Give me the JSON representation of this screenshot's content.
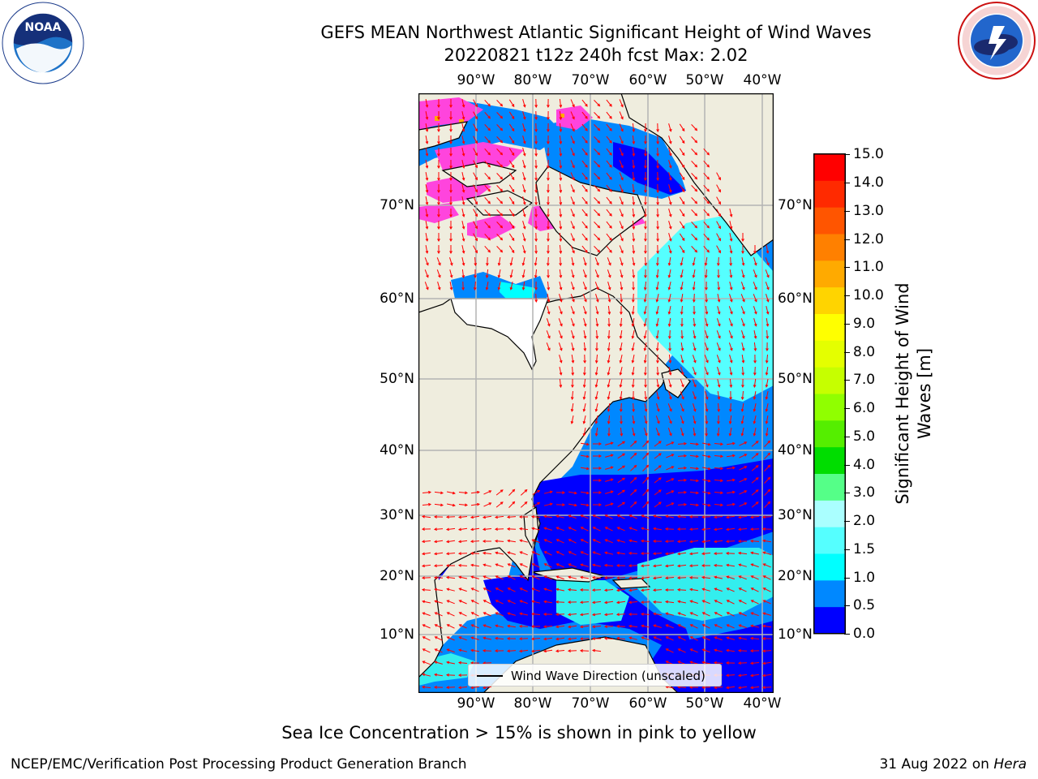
{
  "title": {
    "line1": "GEFS MEAN Northwest Atlantic Significant Height of Wind Waves",
    "line2": "20220821 t12z 240h fcst   Max: 2.02"
  },
  "logos": {
    "left": {
      "name": "noaa-logo",
      "text": "NOAA",
      "ring_text": "NATIONAL OCEANIC AND ATMOSPHERIC ADMINISTRATION · U.S. DEPARTMENT OF COMMERCE"
    },
    "right": {
      "name": "nws-logo",
      "ring_text": "NATIONAL WEATHER SERVICE"
    }
  },
  "map": {
    "lon_labels": [
      "90°W",
      "80°W",
      "70°W",
      "60°W",
      "50°W",
      "40°W"
    ],
    "lat_labels": [
      "70°N",
      "60°N",
      "50°N",
      "40°N",
      "30°N",
      "20°N",
      "10°N"
    ],
    "colors": {
      "land": "#efedde",
      "grid": "#b4b4b4",
      "arrow": "#ff0000",
      "ice": "#ff44dd"
    }
  },
  "legend": {
    "label": "Wind Wave Direction (unscaled)"
  },
  "colorbar": {
    "label": "Significant Height of Wind Waves [m]",
    "ticks": [
      "15.0",
      "14.0",
      "13.0",
      "12.0",
      "11.0",
      "10.0",
      "9.0",
      "8.0",
      "7.0",
      "6.0",
      "5.0",
      "4.0",
      "3.0",
      "2.0",
      "1.5",
      "1.0",
      "0.5",
      "0.0"
    ],
    "colors": [
      "#ff0000",
      "#ff2a00",
      "#ff5500",
      "#ff8000",
      "#ffaa00",
      "#ffd400",
      "#ffff00",
      "#e4ff00",
      "#c6ff00",
      "#90ff00",
      "#55ee00",
      "#00dd00",
      "#55ff88",
      "#aaffff",
      "#55ffff",
      "#00ffff",
      "#0088ff",
      "#0000ff"
    ]
  },
  "caption": "Sea Ice Concentration > 15% is shown in pink to yellow",
  "footer": {
    "left": "NCEP/EMC/Verification Post Processing Product Generation Branch",
    "right_date": "31 Aug 2022 on ",
    "right_host": "Hera"
  }
}
